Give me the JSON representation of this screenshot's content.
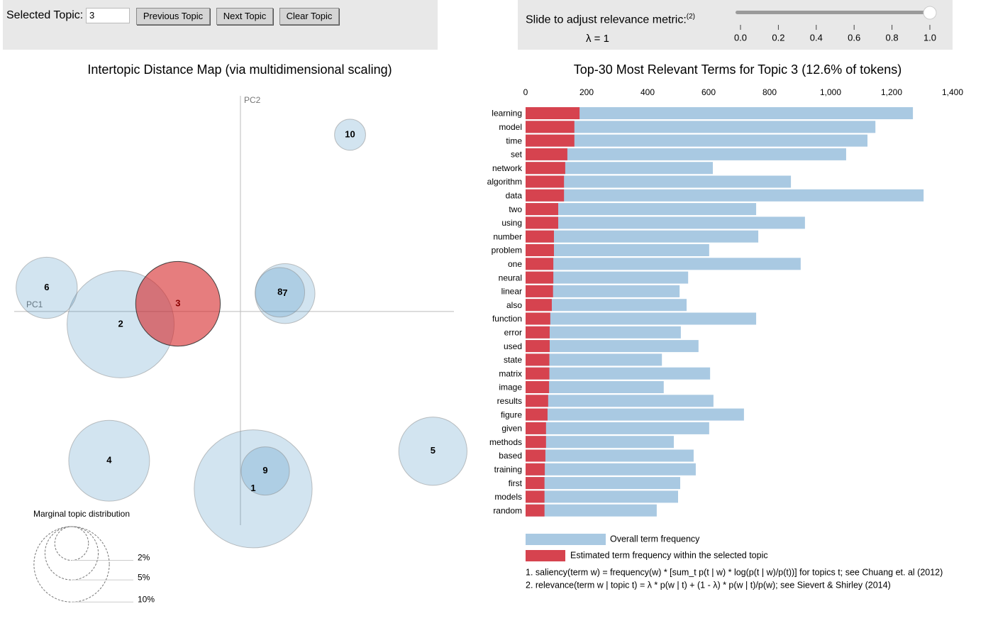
{
  "controls": {
    "topic_label": "Selected Topic:",
    "topic_value": "3",
    "buttons": [
      "Previous Topic",
      "Next Topic",
      "Clear Topic"
    ],
    "slider_label": "Slide to adjust relevance metric:",
    "slider_note": "(2)",
    "lambda_label": "λ = 1",
    "slider": {
      "value": 1,
      "range": [
        0,
        1
      ],
      "ticks": [
        {
          "value": 0,
          "label": "0.0"
        },
        {
          "value": 0.2,
          "label": "0.2"
        },
        {
          "value": 0.4,
          "label": "0.4"
        },
        {
          "value": 0.6,
          "label": "0.6"
        },
        {
          "value": 0.8,
          "label": "0.8"
        },
        {
          "value": 1,
          "label": "1.0"
        }
      ]
    }
  },
  "chart_data": [
    {
      "type": "bubble",
      "title": "Intertopic Distance Map (via multidimensional scaling)",
      "xlabel": "PC1",
      "ylabel": "PC2",
      "xlim": [
        -0.355,
        0.335
      ],
      "ylim": [
        -0.335,
        0.338
      ],
      "topics": [
        "1",
        "2",
        "3",
        "4",
        "5",
        "6",
        "7",
        "8",
        "9",
        "10"
      ],
      "x": [
        0.02,
        -0.188,
        -0.098,
        -0.206,
        0.302,
        -0.304,
        0.07,
        0.062,
        0.039,
        0.172
      ],
      "y": [
        -0.278,
        -0.02,
        0.012,
        -0.234,
        -0.219,
        0.037,
        0.028,
        0.03,
        -0.25,
        0.277
      ],
      "sizes": [
        24.5,
        20.2,
        12.6,
        11.5,
        8.2,
        6.6,
        6.3,
        4.3,
        4.1,
        1.7
      ],
      "color": "#1f77b4",
      "selected_color": "#d62728",
      "selected": "3",
      "size_legend": {
        "title": "Marginal topic distribution",
        "values": [
          {
            "value": 2,
            "label": "2%"
          },
          {
            "value": 5,
            "label": "5%"
          },
          {
            "value": 10,
            "label": "10%"
          }
        ]
      }
    },
    {
      "type": "bar",
      "orientation": "horizontal",
      "title": "Top-30 Most Relevant Terms for Topic 3 (12.6% of tokens)",
      "categories": [
        "learning",
        "model",
        "time",
        "set",
        "network",
        "algorithm",
        "data",
        "two",
        "using",
        "number",
        "problem",
        "one",
        "neural",
        "linear",
        "also",
        "function",
        "error",
        "used",
        "state",
        "matrix",
        "image",
        "results",
        "figure",
        "given",
        "methods",
        "based",
        "training",
        "first",
        "models",
        "random"
      ],
      "series": [
        {
          "name": "Overall term frequency",
          "color": "#a9c9e2",
          "values": [
            1270,
            1147,
            1121,
            1051,
            614,
            870,
            1305,
            756,
            916,
            763,
            602,
            902,
            533,
            505,
            528,
            756,
            509,
            567,
            447,
            605,
            453,
            616,
            716,
            602,
            486,
            551,
            558,
            507,
            500,
            430
          ]
        },
        {
          "name": "Estimated term frequency within the selected topic",
          "color": "#d6434f",
          "values": [
            177,
            160,
            160,
            137,
            130,
            126,
            126,
            107,
            107,
            93,
            93,
            91,
            91,
            90,
            86,
            81,
            79,
            79,
            78,
            78,
            77,
            74,
            72,
            67,
            67,
            65,
            63,
            62,
            62,
            62
          ]
        }
      ],
      "xlim": [
        0,
        1400
      ],
      "xticks": [
        0,
        200,
        400,
        600,
        800,
        {
          "value": 1000,
          "label": "1,000"
        },
        {
          "value": 1200,
          "label": "1,200"
        },
        {
          "value": 1400,
          "label": "1,400"
        }
      ]
    }
  ],
  "footnotes": [
    "1. saliency(term w) = frequency(w) * [sum_t p(t | w) * log(p(t | w)/p(t))] for topics t; see Chuang et. al (2012)",
    "2. relevance(term w | topic t) = λ * p(w | t) + (1 - λ) * p(w | t)/p(w); see Sievert & Shirley (2014)"
  ]
}
